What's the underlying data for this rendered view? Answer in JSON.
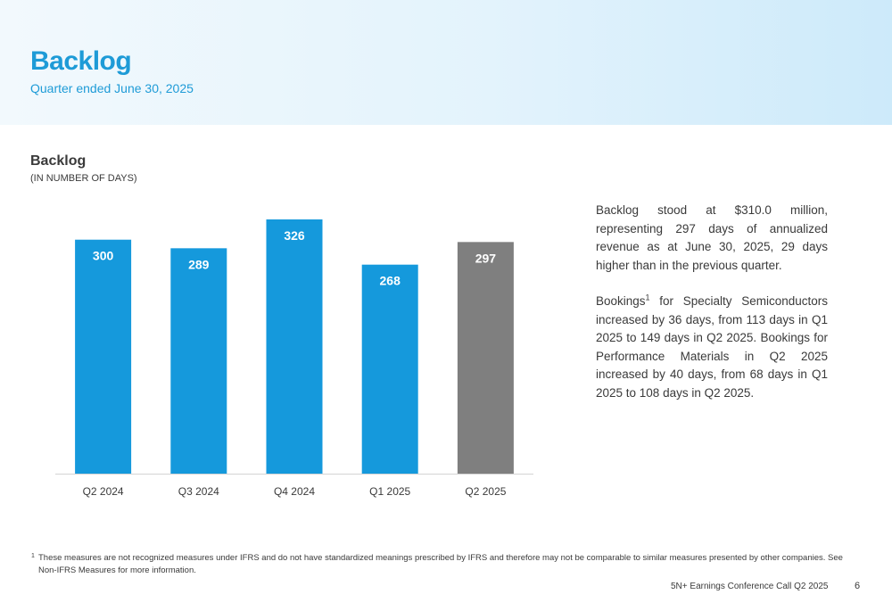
{
  "header": {
    "title": "Backlog",
    "subtitle": "Quarter ended June 30, 2025"
  },
  "chart_section": {
    "title": "Backlog",
    "subtitle": "(IN NUMBER OF DAYS)"
  },
  "chart_data": {
    "type": "bar",
    "categories": [
      "Q2 2024",
      "Q3 2024",
      "Q4 2024",
      "Q1 2025",
      "Q2 2025"
    ],
    "values": [
      300,
      289,
      326,
      268,
      297
    ],
    "bar_colors": [
      "#1599dc",
      "#1599dc",
      "#1599dc",
      "#1599dc",
      "#7f7f7f"
    ],
    "ylim": [
      0,
      350
    ],
    "grid": false,
    "data_labels": true,
    "title": "",
    "xlabel": "",
    "ylabel": ""
  },
  "commentary": {
    "paragraph1": "Backlog stood at $310.0 million, representing 297 days of annualized revenue as at June 30, 2025, 29 days higher than in the previous quarter.",
    "paragraph2_prefix": "Bookings",
    "paragraph2_sup": "1",
    "paragraph2_rest": " for Specialty Semiconductors increased by 36 days, from 113 days in Q1 2025 to 149 days in Q2 2025. Bookings for Performance Materials in Q2 2025 increased by 40 days, from 68 days in Q1 2025 to 108 days in Q2 2025."
  },
  "footnote": {
    "marker": "1",
    "text": "These measures are not recognized measures under IFRS and do not have standardized meanings prescribed by IFRS and therefore may not be comparable to similar measures presented by other companies. See Non-IFRS Measures for more information."
  },
  "footer": {
    "text": "5N+ Earnings Conference Call Q2 2025",
    "page_number": "6"
  },
  "colors": {
    "accent": "#1e9bd7",
    "bar_blue": "#1599dc",
    "bar_gray": "#7f7f7f",
    "text": "#3a3a3a"
  }
}
